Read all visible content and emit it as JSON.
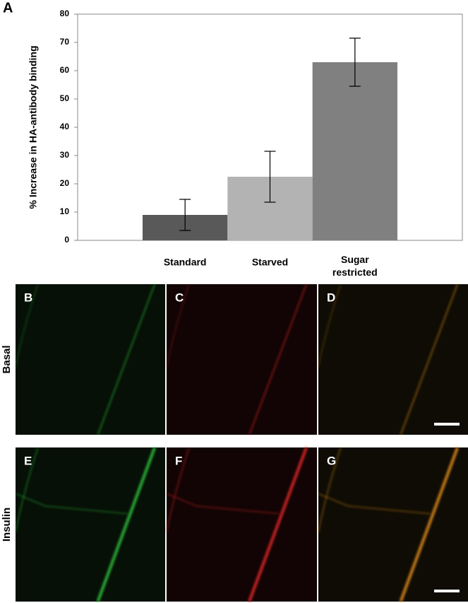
{
  "chart_data": {
    "type": "bar",
    "panel_label": "A",
    "ylabel": "% Increase in HA-antibody binding",
    "categories": [
      "Standard",
      "Starved",
      "Sugar restricted"
    ],
    "values": [
      9,
      22.5,
      63
    ],
    "errors": [
      5.5,
      9,
      8.5
    ],
    "colors": [
      "#595959",
      "#b3b3b3",
      "#808080"
    ],
    "ylim": [
      0,
      80
    ],
    "yticks": [
      0,
      10,
      20,
      30,
      40,
      50,
      60,
      70,
      80
    ],
    "grid": false
  },
  "images": {
    "rows": [
      {
        "label": "Basal",
        "panels": [
          "B",
          "C",
          "D"
        ]
      },
      {
        "label": "Insulin",
        "panels": [
          "E",
          "F",
          "G"
        ]
      }
    ]
  }
}
